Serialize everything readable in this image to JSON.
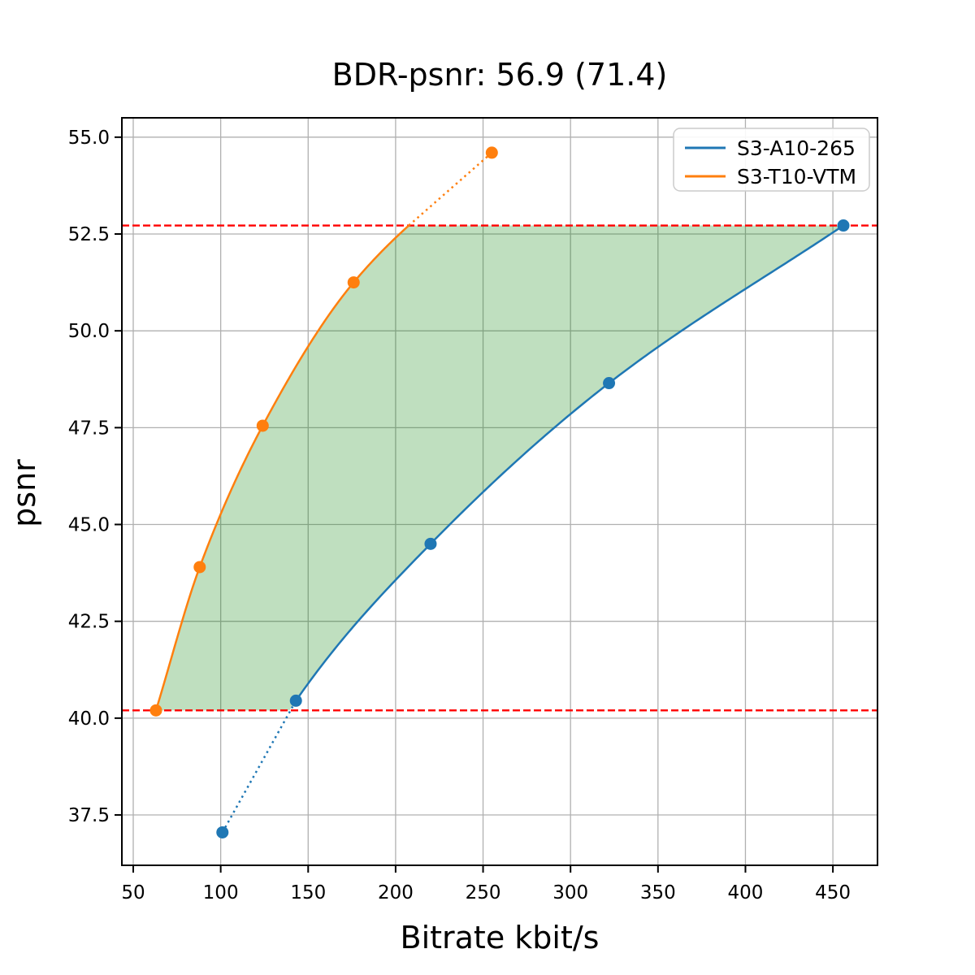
{
  "chart_data": {
    "type": "line",
    "title": "BDR-psnr: 56.9 (71.4)",
    "xlabel": "Bitrate kbit/s",
    "ylabel": "psnr",
    "xlim": [
      43.5,
      475.5
    ],
    "ylim": [
      36.2,
      55.5
    ],
    "xticks": [
      50,
      100,
      150,
      200,
      250,
      300,
      350,
      400,
      450
    ],
    "yticks": [
      37.5,
      40.0,
      42.5,
      45.0,
      47.5,
      50.0,
      52.5,
      55.0
    ],
    "grid": true,
    "grid_color": "#b0b0b0",
    "legend_position": "upper right",
    "series": [
      {
        "name": "S3-A10-265",
        "color": "#1f77b4",
        "x": [
          101,
          143,
          220,
          322,
          456
        ],
        "y": [
          37.05,
          40.45,
          44.5,
          48.65,
          52.72
        ],
        "dotted_segment": "start"
      },
      {
        "name": "S3-T10-VTM",
        "color": "#ff7f0e",
        "x": [
          63,
          88,
          124,
          176,
          255
        ],
        "y": [
          40.2,
          43.9,
          47.55,
          51.25,
          54.6
        ],
        "dotted_segment": "end"
      }
    ],
    "hlines": {
      "values": [
        52.72,
        40.2
      ],
      "color": "#ff0000",
      "style": "dashed"
    },
    "fill_between": {
      "color": "#008000",
      "alpha": 0.25,
      "psnr_range": [
        40.2,
        52.72
      ]
    }
  }
}
